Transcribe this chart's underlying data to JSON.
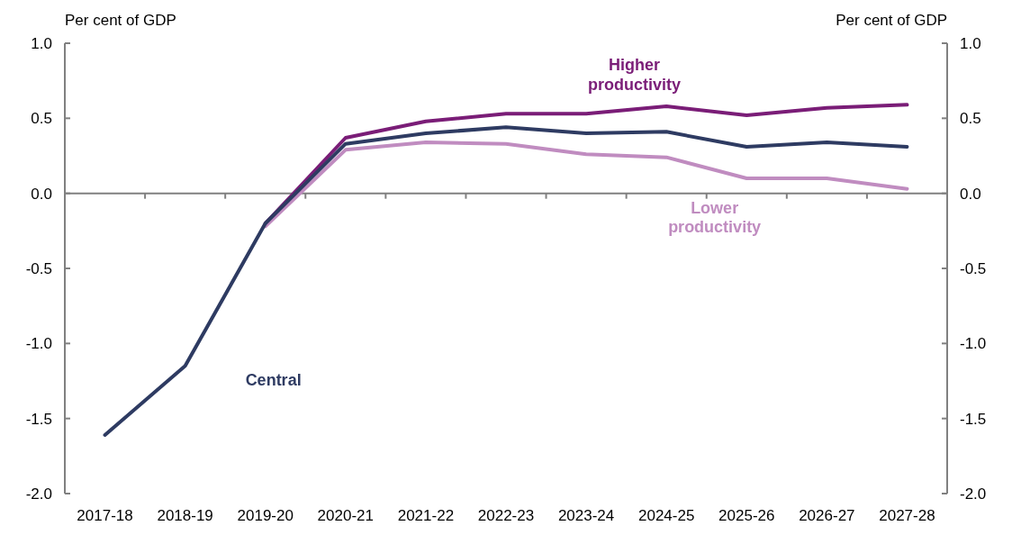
{
  "chart_data": {
    "type": "line",
    "categories": [
      "2017-18",
      "2018-19",
      "2019-20",
      "2020-21",
      "2021-22",
      "2022-23",
      "2023-24",
      "2024-25",
      "2025-26",
      "2026-27",
      "2027-28"
    ],
    "series": [
      {
        "name": "Lower productivity",
        "color": "#c08cc0",
        "values": [
          null,
          null,
          -0.22,
          0.29,
          0.34,
          0.33,
          0.26,
          0.24,
          0.1,
          0.1,
          0.03
        ]
      },
      {
        "name": "Higher productivity",
        "color": "#7a1d77",
        "values": [
          null,
          null,
          -0.2,
          0.37,
          0.48,
          0.53,
          0.53,
          0.58,
          0.52,
          0.57,
          0.59
        ]
      },
      {
        "name": "Central",
        "color": "#2e3b62",
        "values": [
          -1.61,
          -1.15,
          -0.2,
          0.33,
          0.4,
          0.44,
          0.4,
          0.41,
          0.31,
          0.34,
          0.31
        ]
      }
    ],
    "ylabel": "Per cent of GDP",
    "y2label": "Per cent of GDP",
    "ylim": [
      -2,
      1
    ],
    "yticks": [
      {
        "value": -2,
        "label": "-2.0"
      },
      {
        "value": -1.5,
        "label": "-1.5"
      },
      {
        "value": -1,
        "label": "-1.0"
      },
      {
        "value": -0.5,
        "label": "-0.5"
      },
      {
        "value": 0,
        "label": "0.0"
      },
      {
        "value": 0.5,
        "label": "0.5"
      },
      {
        "value": 1,
        "label": "1.0"
      }
    ],
    "y2lim": [
      -2,
      1
    ],
    "y2ticks": [
      {
        "value": -2,
        "label": "-2.0"
      },
      {
        "value": -1.5,
        "label": "-1.5"
      },
      {
        "value": -1,
        "label": "-1.0"
      },
      {
        "value": -0.5,
        "label": "-0.5"
      },
      {
        "value": 0,
        "label": "0.0"
      },
      {
        "value": 0.5,
        "label": "0.5"
      },
      {
        "value": 1,
        "label": "1.0"
      }
    ],
    "line_style": "solid",
    "marker": "none"
  }
}
